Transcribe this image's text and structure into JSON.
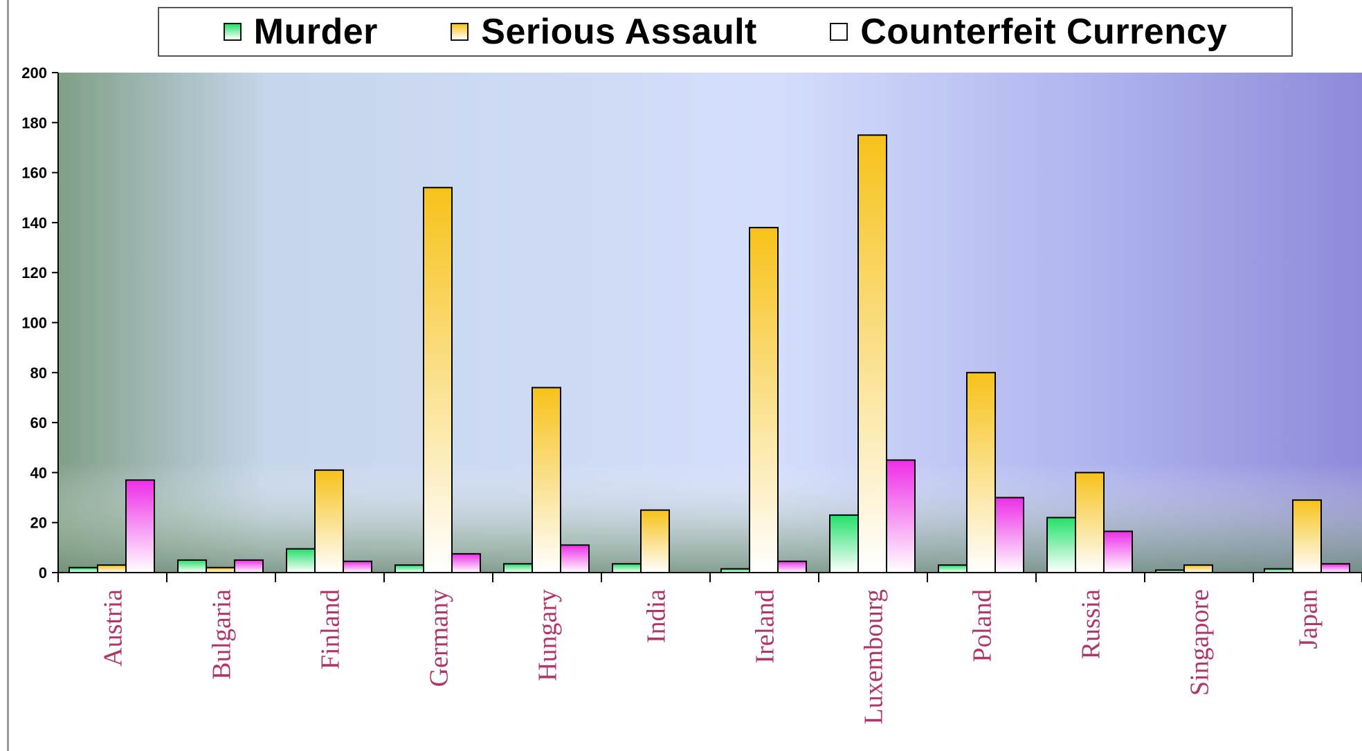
{
  "chart_data": {
    "type": "bar",
    "categories": [
      "Austria",
      "Bulgaria",
      "Finland",
      "Germany",
      "Hungary",
      "India",
      "Ireland",
      "Luxembourg",
      "Poland",
      "Russia",
      "Singapore",
      "Japan"
    ],
    "series": [
      {
        "name": "Murder",
        "color": "#22e06a",
        "values": [
          2,
          5,
          9.5,
          3,
          3.5,
          3.5,
          1.5,
          23,
          3,
          22,
          1,
          1.5
        ]
      },
      {
        "name": "Serious Assault",
        "color": "#f7c21a",
        "values": [
          3,
          2,
          41,
          154,
          74,
          25,
          138,
          175,
          80,
          40,
          3,
          29
        ]
      },
      {
        "name": "Counterfeit Currency",
        "color": "#ee2ee8",
        "values": [
          37,
          5,
          4.5,
          7.5,
          11,
          0,
          4.5,
          45,
          30,
          16.5,
          0,
          3.5
        ]
      }
    ],
    "ylim": [
      0,
      200
    ],
    "yticks": [
      0,
      20,
      40,
      60,
      80,
      100,
      120,
      140,
      160,
      180,
      200
    ],
    "legend_position": "top",
    "grid": false
  }
}
